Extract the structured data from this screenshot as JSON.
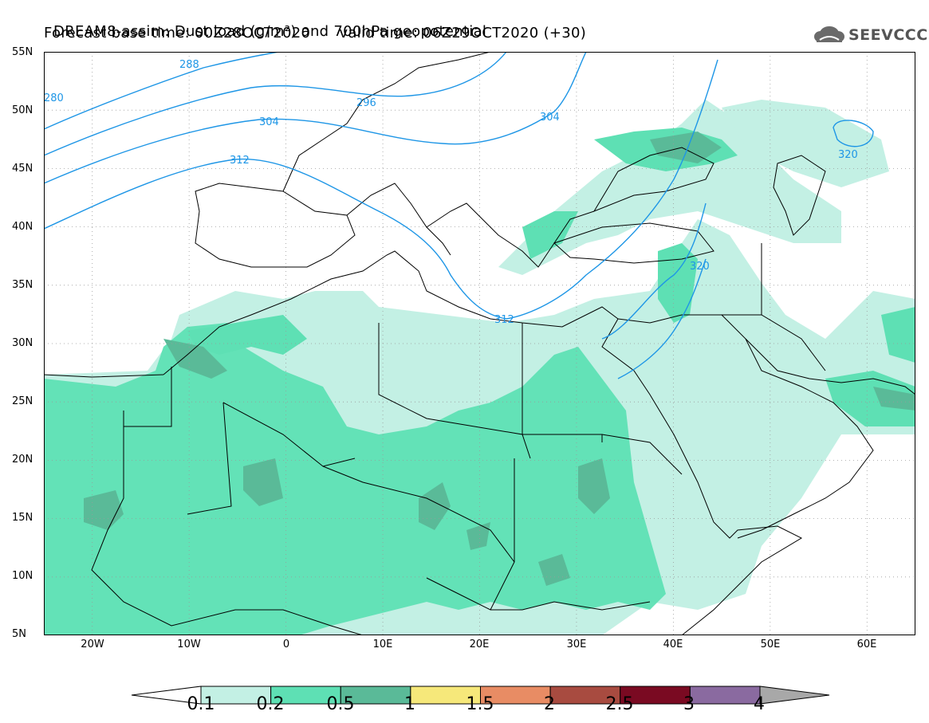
{
  "title": {
    "line1": "DREAM8-assim: Dust load (g/m²) and 700hPa geopotential",
    "line2": "Forecast base time: 00Z28OCT2020      valid time: 06Z29OCT2020 (+30)"
  },
  "logo": {
    "text": "SEEVCCC",
    "icon": "cloud-icon"
  },
  "axes": {
    "lat_labels": [
      "55N",
      "50N",
      "45N",
      "40N",
      "35N",
      "30N",
      "25N",
      "20N",
      "15N",
      "10N",
      "5N"
    ],
    "lon_labels": [
      "20W",
      "10W",
      "0",
      "10E",
      "20E",
      "30E",
      "40E",
      "50E",
      "60E"
    ],
    "lon_range": [
      -25,
      65
    ],
    "lat_range": [
      5,
      55
    ]
  },
  "contour_labels": [
    "288",
    "296",
    "304",
    "312",
    "320",
    "312",
    "320",
    "280"
  ],
  "colorbar": {
    "labels": [
      "0.1",
      "0.2",
      "0.5",
      "1",
      "1.5",
      "2",
      "2.5",
      "3",
      "4"
    ],
    "colors": [
      "#c3f0e4",
      "#5ee0b4",
      "#5aba98",
      "#f6e87a",
      "#e88c64",
      "#a84b40",
      "#7a0a22",
      "#8a6aa0",
      "#a8a8a8"
    ]
  },
  "map_colors": {
    "coast": "#000000",
    "contour": "#1e96e6",
    "grid": "#9a9a9a"
  }
}
